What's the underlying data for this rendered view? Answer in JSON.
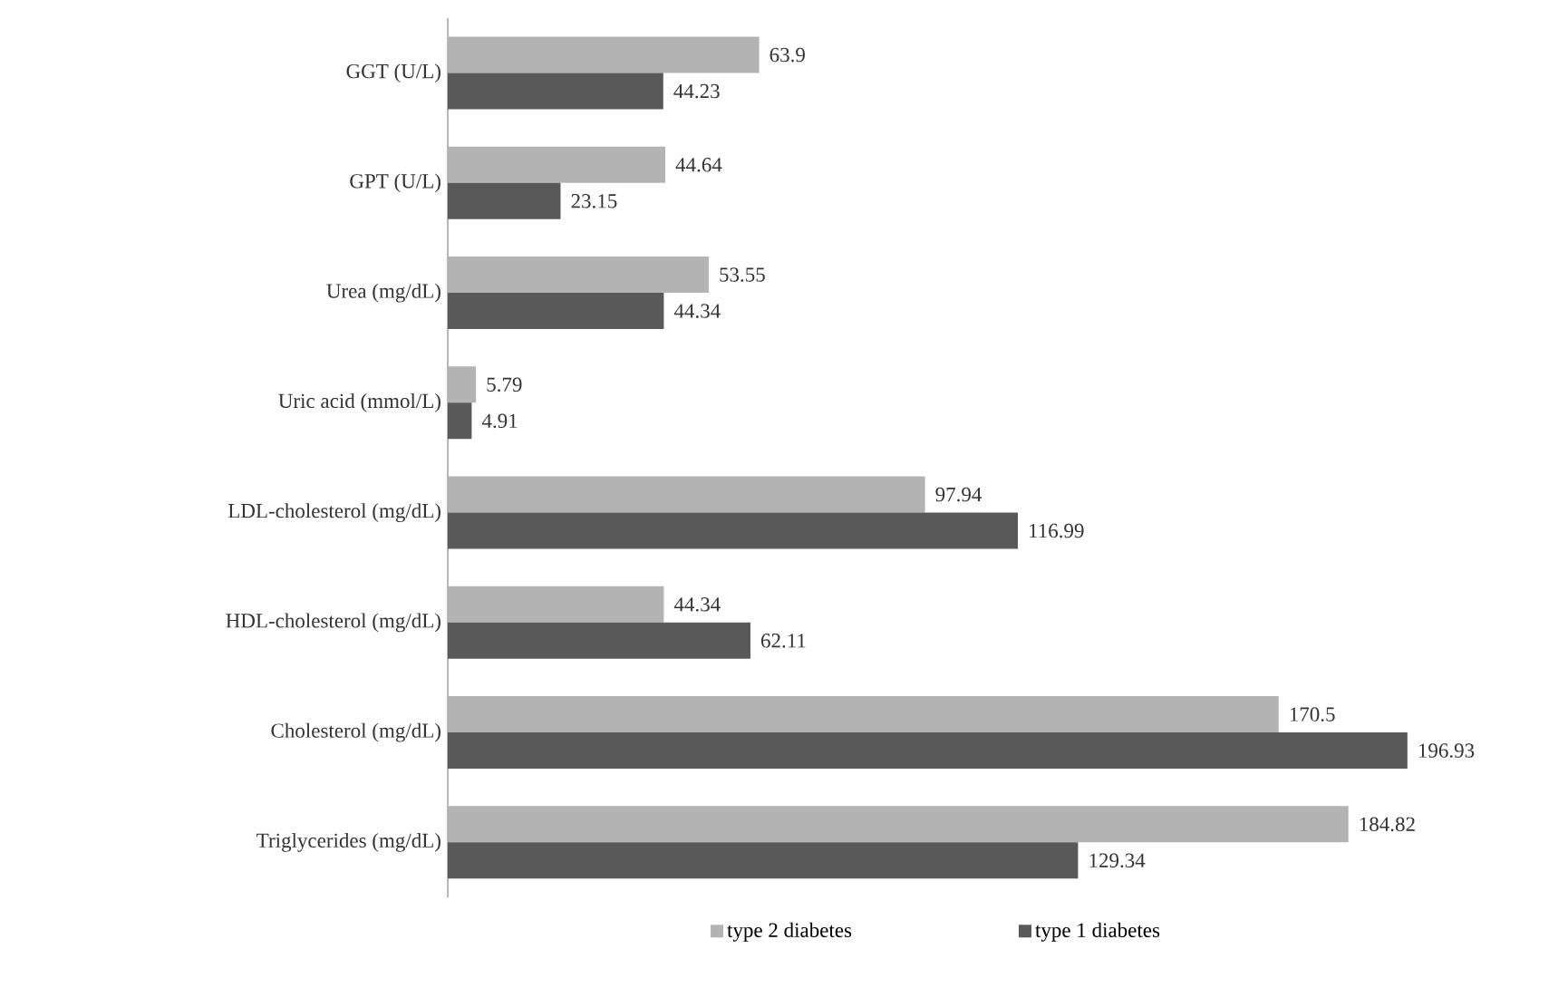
{
  "chart_data": {
    "type": "bar",
    "orientation": "horizontal",
    "categories": [
      "GGT (U/L)",
      "GPT (U/L)",
      "Urea (mg/dL)",
      "Uric acid (mmol/L)",
      "LDL-cholesterol (mg/dL)",
      "HDL-cholesterol (mg/dL)",
      "Cholesterol (mg/dL)",
      "Triglycerides (mg/dL)"
    ],
    "series": [
      {
        "name": "type 2 diabetes",
        "color": "#b3b3b3",
        "values": [
          63.9,
          44.64,
          53.55,
          5.79,
          97.94,
          44.34,
          170.5,
          184.82
        ]
      },
      {
        "name": "type 1 diabetes",
        "color": "#595959",
        "values": [
          44.23,
          23.15,
          44.34,
          4.91,
          116.99,
          62.11,
          196.93,
          129.34
        ]
      }
    ],
    "data_labels": true,
    "legend": "bottom",
    "grid": false
  }
}
